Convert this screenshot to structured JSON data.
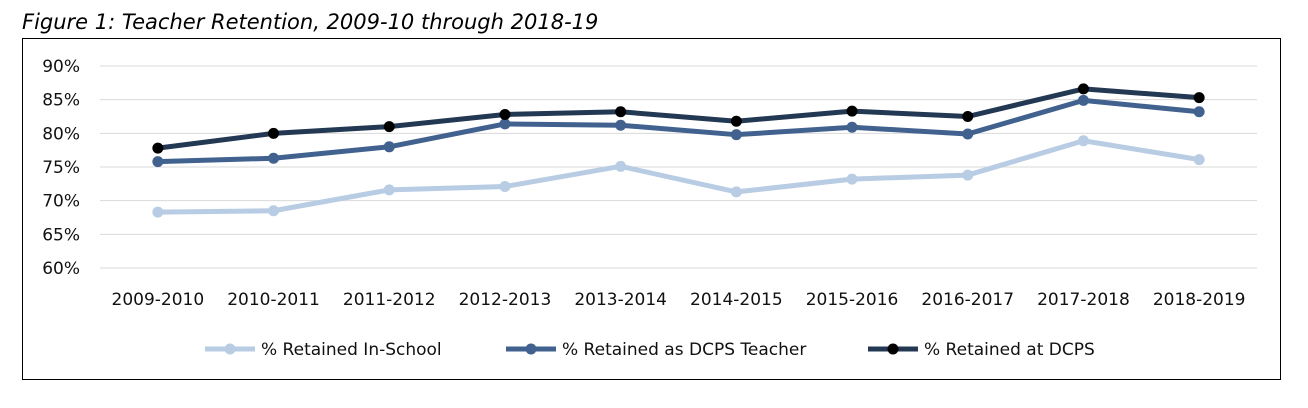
{
  "figure_title": "Figure 1: Teacher Retention, 2009-10 through 2018-19",
  "chart_data": {
    "type": "line",
    "title": "Figure 1: Teacher Retention, 2009-10 through 2018-19",
    "xlabel": "",
    "ylabel": "",
    "categories": [
      "2009-2010",
      "2010-2011",
      "2011-2012",
      "2012-2013",
      "2013-2014",
      "2014-2015",
      "2015-2016",
      "2016-2017",
      "2017-2018",
      "2018-2019"
    ],
    "ylim": [
      60,
      90
    ],
    "yticks": [
      60,
      65,
      70,
      75,
      80,
      85,
      90
    ],
    "ytick_labels": [
      "60%",
      "65%",
      "70%",
      "75%",
      "80%",
      "85%",
      "90%"
    ],
    "grid": true,
    "legend_position": "bottom",
    "series": [
      {
        "name": "% Retained In-School",
        "color": "#b8cce4",
        "values": [
          68.3,
          68.5,
          71.6,
          72.1,
          75.1,
          71.3,
          73.2,
          73.8,
          78.9,
          76.1
        ]
      },
      {
        "name": "% Retained as DCPS Teacher",
        "color": "#41618f",
        "values": [
          75.8,
          76.3,
          78.0,
          81.4,
          81.2,
          79.8,
          80.9,
          79.9,
          84.9,
          83.2
        ]
      },
      {
        "name": "% Retained at DCPS",
        "color": "#233852",
        "marker_color": "#000000",
        "values": [
          77.8,
          80.0,
          81.0,
          82.8,
          83.2,
          81.8,
          83.3,
          82.5,
          86.6,
          85.3
        ]
      }
    ]
  }
}
